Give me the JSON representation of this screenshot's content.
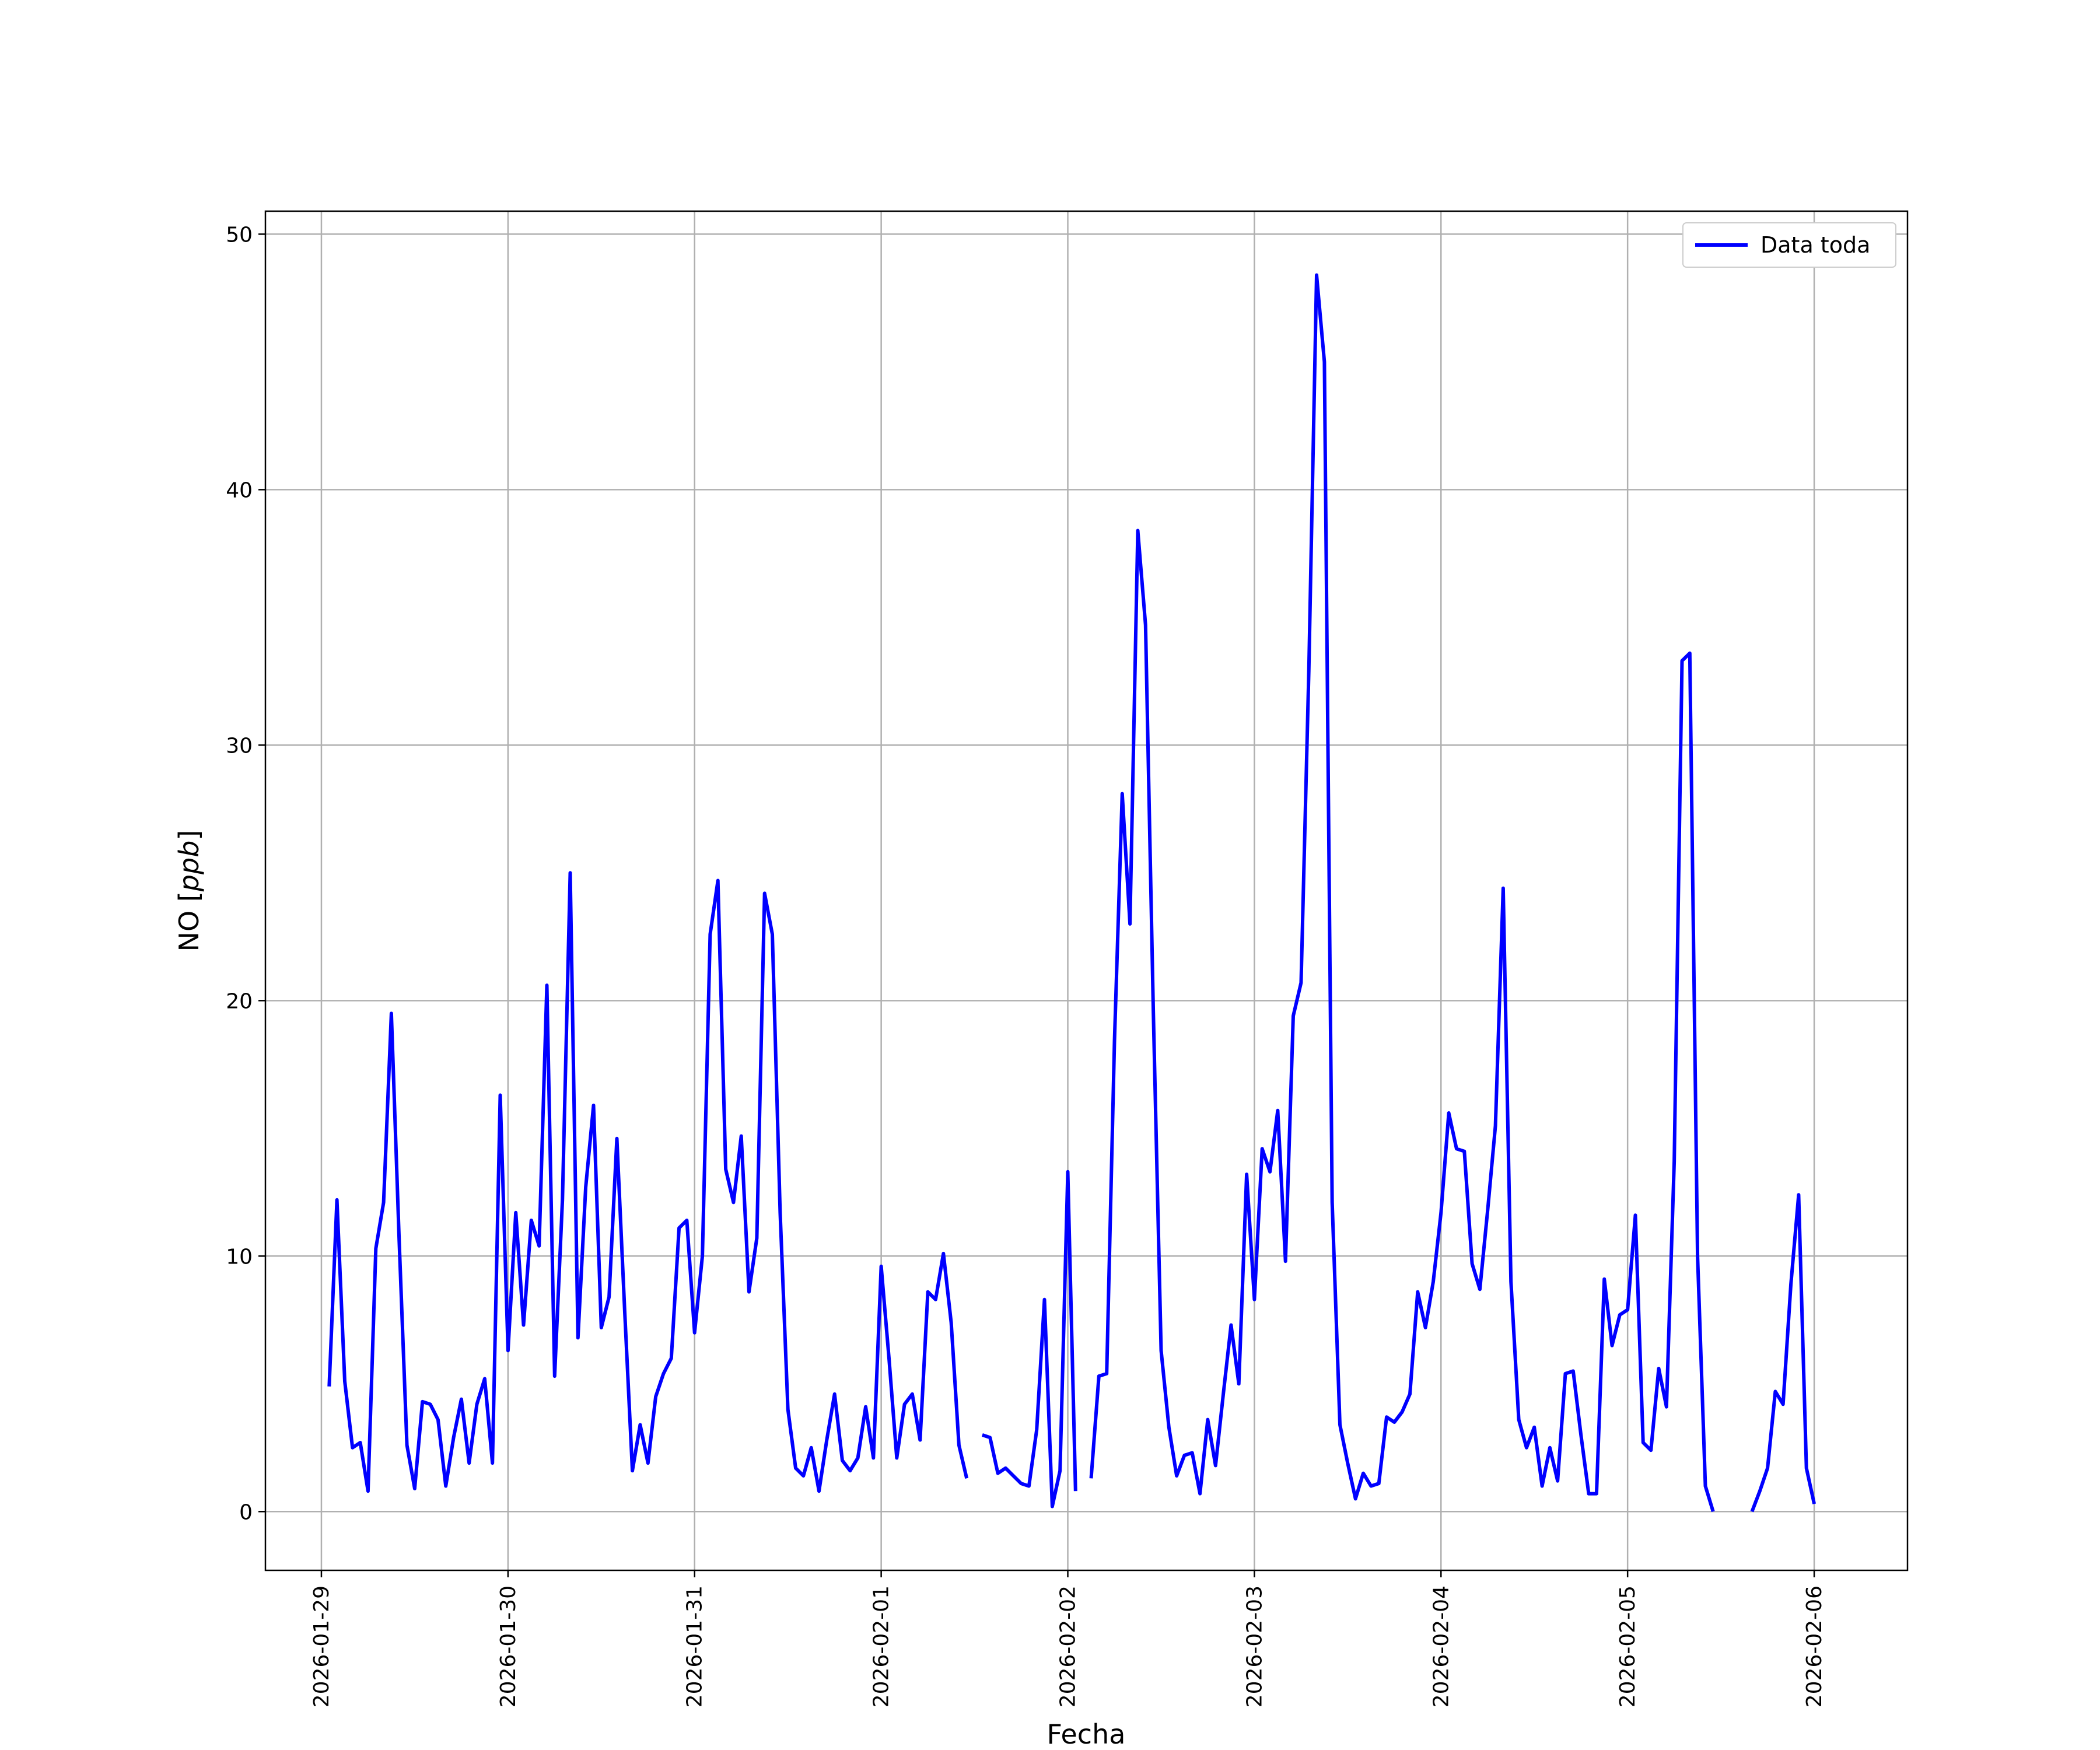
{
  "chart_data": {
    "type": "line",
    "title": "",
    "xlabel": "Fecha",
    "ylabel": "NO [ppb]",
    "ylabel_main": "NO [",
    "ylabel_unit": "ppb",
    "ylabel_close": "]",
    "xlim": [
      "2026-01-28T16:48",
      "2026-02-06T12:00"
    ],
    "ylim": [
      -2.3,
      50.9
    ],
    "grid": true,
    "legend_position": "top-right",
    "x_ticks": [
      "2026-01-29",
      "2026-01-30",
      "2026-01-31",
      "2026-02-01",
      "2026-02-02",
      "2026-02-03",
      "2026-02-04",
      "2026-02-05",
      "2026-02-06"
    ],
    "y_ticks": [
      0,
      10,
      20,
      30,
      40,
      50
    ],
    "series": [
      {
        "name": "Data toda",
        "color": "#0000ff",
        "x_start": "2026-01-29T01:00",
        "x_step_hours": 1,
        "values": [
          4.9,
          12.2,
          5.1,
          2.5,
          2.7,
          0.8,
          10.3,
          12.1,
          19.5,
          10.6,
          2.6,
          0.9,
          4.3,
          4.2,
          3.6,
          1.0,
          2.9,
          4.4,
          1.9,
          4.2,
          5.2,
          1.9,
          16.3,
          6.3,
          11.7,
          7.3,
          11.4,
          10.4,
          20.6,
          5.3,
          12.2,
          25.0,
          6.8,
          12.7,
          15.9,
          7.2,
          8.4,
          14.6,
          7.9,
          1.6,
          3.4,
          1.9,
          4.5,
          5.4,
          6.0,
          11.1,
          11.4,
          7.0,
          10.0,
          22.6,
          24.7,
          13.4,
          12.1,
          14.7,
          8.6,
          10.7,
          24.2,
          22.6,
          11.7,
          4.0,
          1.7,
          1.4,
          2.5,
          0.8,
          2.8,
          4.6,
          2.0,
          1.6,
          2.1,
          4.1,
          2.1,
          9.6,
          6.0,
          2.1,
          4.2,
          4.6,
          2.8,
          8.6,
          8.3,
          10.1,
          7.4,
          2.6,
          1.3,
          null,
          3.0,
          2.9,
          1.5,
          1.7,
          1.4,
          1.1,
          1.0,
          3.2,
          8.3,
          0.2,
          1.6,
          13.3,
          0.8,
          null,
          1.3,
          5.3,
          5.4,
          18.4,
          28.1,
          23.0,
          38.4,
          34.7,
          19.6,
          6.3,
          3.3,
          1.4,
          2.2,
          2.3,
          0.7,
          3.6,
          1.8,
          4.6,
          7.3,
          5.0,
          13.2,
          8.3,
          14.2,
          13.3,
          15.7,
          9.8,
          19.4,
          20.7,
          32.9,
          48.4,
          45.0,
          12.1,
          3.4,
          1.9,
          0.5,
          1.5,
          1.0,
          1.1,
          3.7,
          3.5,
          3.9,
          4.6,
          8.6,
          7.2,
          9.0,
          11.7,
          15.6,
          14.2,
          14.1,
          9.7,
          8.7,
          11.8,
          15.1,
          24.4,
          9.0,
          3.6,
          2.5,
          3.3,
          1.0,
          2.5,
          1.2,
          5.4,
          5.5,
          3.0,
          0.7,
          0.7,
          9.1,
          6.5,
          7.7,
          7.9,
          11.6,
          2.7,
          2.4,
          5.6,
          4.1,
          13.7,
          33.3,
          33.6,
          10.0,
          1.0,
          0.0,
          null,
          null,
          null,
          null,
          0.0,
          0.8,
          1.7,
          4.7,
          4.2,
          8.9,
          12.4,
          1.7,
          0.3
        ]
      }
    ]
  }
}
